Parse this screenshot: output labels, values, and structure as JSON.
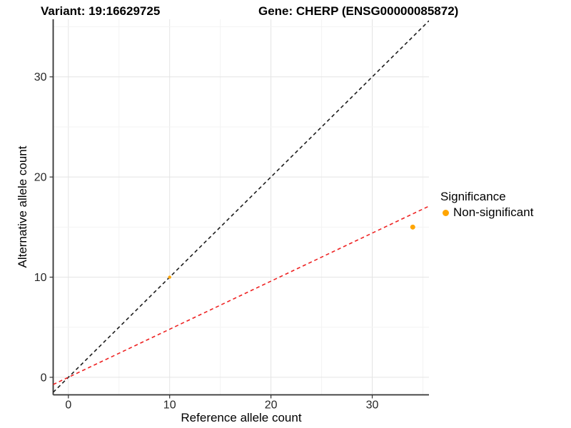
{
  "title": {
    "variant": "Variant: 19:16629725",
    "gene": "Gene: CHERP (ENSG00000085872)"
  },
  "chart_data": {
    "type": "scatter",
    "xlabel": "Reference allele count",
    "ylabel": "Alternative allele count",
    "x_ticks": [
      0,
      10,
      20,
      30
    ],
    "y_ticks": [
      0,
      10,
      20,
      30
    ],
    "x_range": [
      -1.5,
      35.6
    ],
    "y_range": [
      -1.75,
      35.75
    ],
    "grid_step": 5,
    "grid": true,
    "points": [
      {
        "x": 10,
        "y": 10,
        "r": 2.2,
        "series": "Non-significant"
      },
      {
        "x": 34,
        "y": 15,
        "r": 3.5,
        "series": "Non-significant"
      }
    ],
    "lines": [
      {
        "name": "identity-line",
        "slope": 1,
        "intercept": 0,
        "color": "#1C1C1C",
        "dash": "5 4"
      },
      {
        "name": "fit-line",
        "slope": 0.48,
        "intercept": 0,
        "color": "#EE2222",
        "dash": "5 4"
      }
    ],
    "legend": {
      "position": "right",
      "title": "Significance",
      "items": [
        {
          "label": "Non-significant",
          "color": "#FFA500"
        }
      ]
    },
    "colors": {
      "point": "#FFA500",
      "grid_major": "#E4E4E4",
      "grid_minor": "#F3F3F3",
      "axis_line": "#333333",
      "tick_text": "#262626"
    }
  }
}
